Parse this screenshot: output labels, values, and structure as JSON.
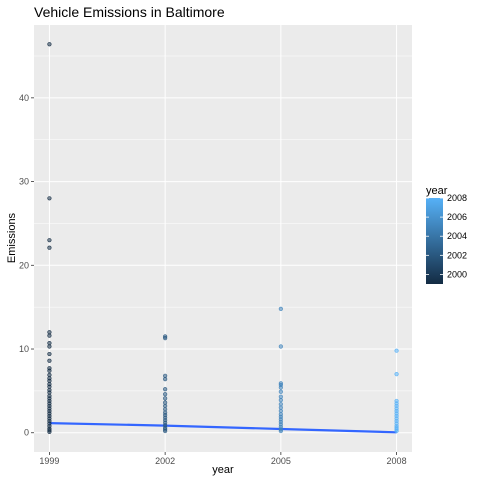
{
  "chart_data": {
    "type": "scatter",
    "title": "Vehicle Emissions in Baltimore",
    "xlabel": "year",
    "ylabel": "Emissions",
    "x_ticks": [
      1999,
      2002,
      2005,
      2008
    ],
    "y_ticks": [
      0,
      10,
      20,
      30,
      40
    ],
    "xlim": [
      1998.6,
      2008.4
    ],
    "ylim": [
      -2.3,
      48.7
    ],
    "grid": true,
    "legend": {
      "title": "year",
      "placement": "right",
      "ticks": [
        2008,
        2006,
        2004,
        2002,
        2000
      ],
      "range": [
        1999,
        2008
      ],
      "color_low": "#132B43",
      "color_high": "#56B1F7"
    },
    "trend": {
      "type": "linear",
      "points": [
        [
          1999,
          1.15
        ],
        [
          2002,
          0.85
        ],
        [
          2005,
          0.45
        ],
        [
          2008,
          0.05
        ]
      ],
      "color": "#3366FF"
    },
    "series": [
      {
        "year": 1999,
        "values": [
          46.4,
          28.0,
          23.0,
          22.1,
          12.0,
          11.6,
          10.7,
          10.3,
          9.4,
          8.6,
          7.7,
          7.4,
          6.9,
          6.5,
          6.2,
          5.8,
          5.5,
          5.1,
          4.8,
          4.4,
          4.1,
          3.8,
          3.5,
          3.2,
          2.9,
          2.6,
          2.3,
          2.0,
          1.7,
          1.4,
          1.1,
          0.8,
          0.5,
          0.3,
          0.1
        ]
      },
      {
        "year": 2002,
        "values": [
          11.5,
          11.3,
          6.8,
          6.4,
          5.2,
          4.6,
          4.1,
          3.6,
          3.2,
          2.8,
          2.4,
          2.1,
          1.8,
          1.5,
          1.2,
          0.9,
          0.6,
          0.4,
          0.2
        ]
      },
      {
        "year": 2005,
        "values": [
          14.8,
          10.3,
          5.9,
          5.7,
          5.4,
          4.9,
          4.3,
          3.9,
          3.4,
          3.0,
          2.6,
          2.2,
          1.9,
          1.6,
          1.3,
          1.0,
          0.7,
          0.4,
          0.2
        ]
      },
      {
        "year": 2008,
        "values": [
          9.8,
          7.0,
          3.8,
          3.5,
          3.2,
          2.9,
          2.6,
          2.3,
          2.0,
          1.7,
          1.4,
          1.1,
          0.8,
          0.6,
          0.4,
          0.2
        ]
      }
    ]
  }
}
